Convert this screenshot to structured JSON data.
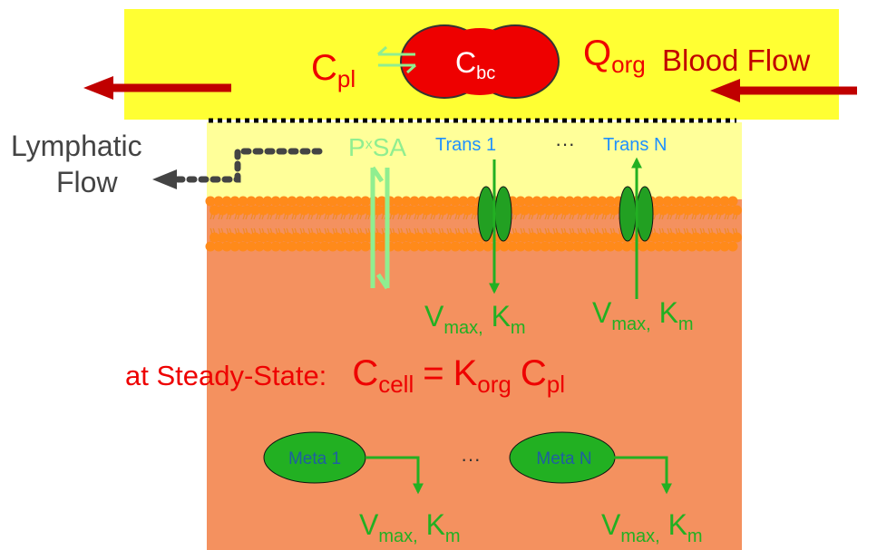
{
  "blood": {
    "c_pl": {
      "main": "C",
      "sub": "pl"
    },
    "c_bc": {
      "main": "C",
      "sub": "bc"
    },
    "q_org": {
      "main": "Q",
      "sub": "org"
    },
    "label": "Blood Flow"
  },
  "lymphatic": {
    "lines": [
      "Lymphatic",
      "Flow"
    ]
  },
  "permeability": {
    "p": "P",
    "x": "x",
    "sa": "SA"
  },
  "transporters": {
    "items": [
      {
        "label": "Trans 1",
        "kinetics": {
          "v": "V",
          "v_sub": "max,",
          "k": "K",
          "k_sub": "m"
        }
      },
      {
        "label": "Trans N",
        "kinetics": {
          "v": "V",
          "v_sub": "max,",
          "k": "K",
          "k_sub": "m"
        }
      }
    ],
    "ellipsis": "···"
  },
  "steady_state": {
    "prefix": "at Steady-State:",
    "c": "C",
    "c_sub": "cell",
    "eq": "=",
    "k": "K",
    "k_sub": "org",
    "c2": "C",
    "c2_sub": "pl"
  },
  "metabolism": {
    "items": [
      {
        "label": "Meta 1",
        "kinetics": {
          "v": "V",
          "v_sub": "max,",
          "k": "K",
          "k_sub": "m"
        }
      },
      {
        "label": "Meta N",
        "kinetics": {
          "v": "V",
          "v_sub": "max,",
          "k": "K",
          "k_sub": "m"
        }
      }
    ],
    "ellipsis": "···"
  }
}
